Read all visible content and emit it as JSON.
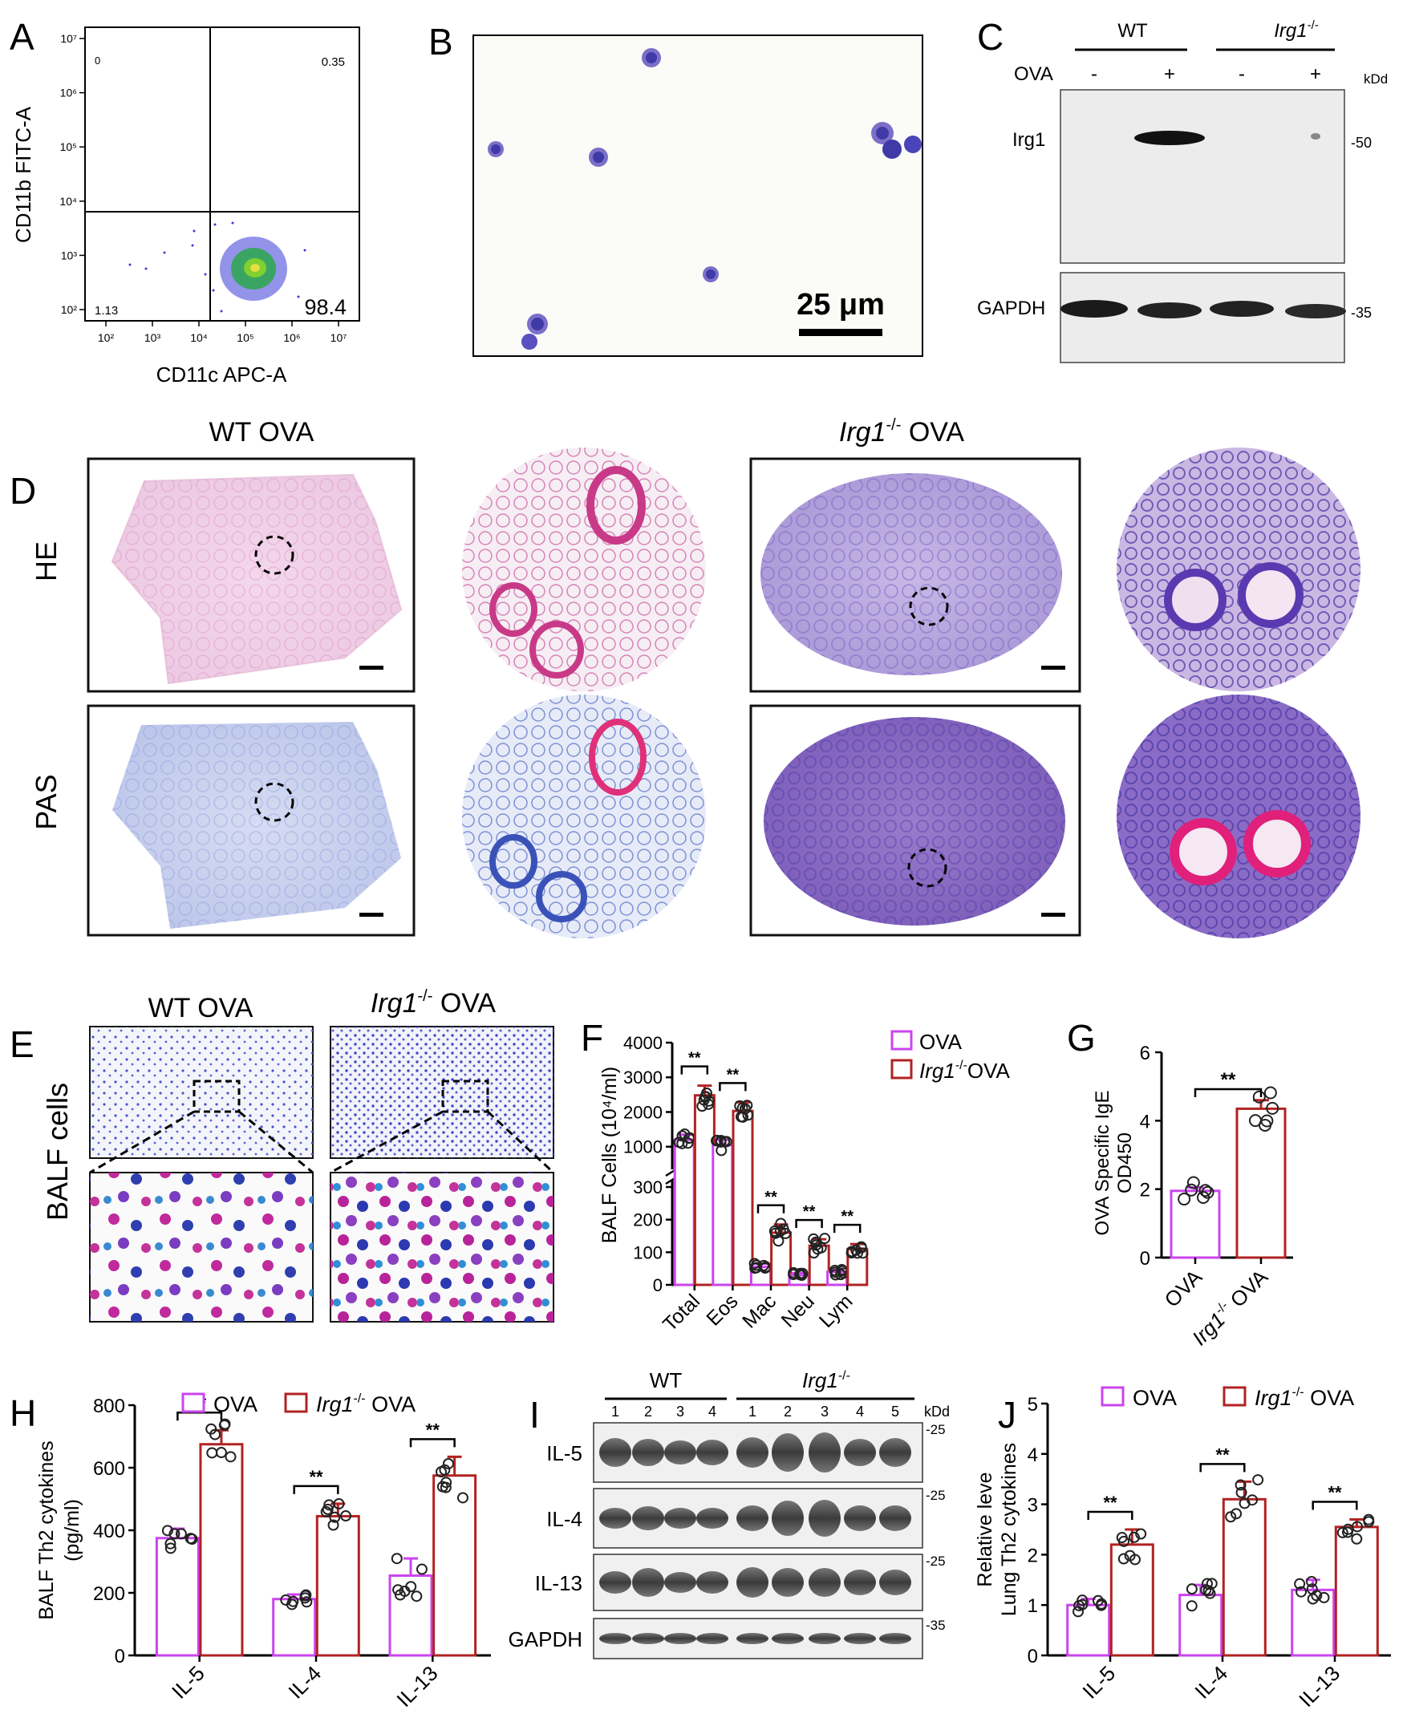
{
  "panels": {
    "A": {
      "label": "A",
      "xlabel": "CD11c APC-A",
      "ylabel": "CD11b FITC-A",
      "x_tick_labels": [
        "10²",
        "10³",
        "10⁴",
        "10⁵",
        "10⁶",
        "10⁷"
      ],
      "y_tick_labels": [
        "10²",
        "10³",
        "10⁴",
        "10⁵",
        "10⁶",
        "10⁷"
      ],
      "quadrant_values": {
        "upper_left": "0",
        "upper_right": "0.35",
        "lower_left": "1.13",
        "lower_right": "98.4"
      }
    },
    "B": {
      "label": "B",
      "scale_bar": "25 μm"
    },
    "C": {
      "label": "C",
      "groups": [
        "WT",
        "Irg1",
        "-/-"
      ],
      "row_label": "OVA",
      "lanes": [
        "-",
        "+",
        "-",
        "+"
      ],
      "unit": "kDd",
      "blots": [
        {
          "name": "Irg1",
          "marker": "-50"
        },
        {
          "name": "GAPDH",
          "marker": "-35"
        }
      ]
    },
    "D": {
      "label": "D",
      "col_titles": [
        {
          "plain": "WT OVA"
        },
        {
          "gene": "Irg1",
          "sup": "-/-",
          "rest": " OVA"
        }
      ],
      "row_labels": [
        "HE",
        "PAS"
      ]
    },
    "E": {
      "label": "E",
      "col_titles": [
        {
          "plain": "WT OVA"
        },
        {
          "gene": "Irg1",
          "sup": "-/-",
          "rest": " OVA"
        }
      ],
      "row_label": "BALF cells"
    },
    "I": {
      "label": "I",
      "groups": [
        "WT",
        "Irg1",
        "-/-"
      ],
      "lane_numbers": [
        "1",
        "2",
        "3",
        "4",
        "1",
        "2",
        "3",
        "4",
        "5"
      ],
      "unit": "kDd",
      "blots": [
        {
          "name": "IL-5",
          "marker": "-25"
        },
        {
          "name": "IL-4",
          "marker": "-25"
        },
        {
          "name": "IL-13",
          "marker": "-25"
        },
        {
          "name": "GAPDH",
          "marker": "-35"
        }
      ]
    }
  },
  "chart_data": [
    {
      "panel": "F",
      "label": "F",
      "type": "bar",
      "ylabel": "BALF Cells (10⁴/ml)",
      "categories": [
        "Total",
        "Eos",
        "Mac",
        "Neu",
        "Lym"
      ],
      "y_axis_break": {
        "lower": [
          0,
          300
        ],
        "upper": [
          300,
          4000
        ]
      },
      "yticks": [
        0,
        100,
        200,
        300,
        1000,
        2000,
        3000,
        4000
      ],
      "legend": [
        {
          "text": "OVA"
        },
        {
          "gene": "Irg1",
          "sup": "-/-",
          "rest": "OVA"
        }
      ],
      "series": [
        {
          "name": "OVA",
          "color": "#cc44ee",
          "values": [
            1200,
            1050,
            55,
            30,
            40
          ],
          "errors": [
            150,
            150,
            10,
            6,
            8
          ]
        },
        {
          "name": "Irg1-/- OVA",
          "color": "#b22222",
          "values": [
            2480,
            2030,
            160,
            120,
            110
          ],
          "errors": [
            280,
            250,
            25,
            20,
            15
          ]
        }
      ],
      "significance": [
        "**",
        "**",
        "**",
        "**",
        "**"
      ]
    },
    {
      "panel": "G",
      "label": "G",
      "type": "bar",
      "ylabel": [
        "OVA Specific IgE",
        "OD450"
      ],
      "categories": [
        {
          "text": "OVA"
        },
        {
          "gene": "Irg1",
          "sup": "-/-",
          "rest": " OVA"
        }
      ],
      "ylim": [
        0,
        6
      ],
      "yticks": [
        0,
        2,
        4,
        6
      ],
      "values": [
        1.95,
        4.35
      ],
      "errors": [
        0.1,
        0.25
      ],
      "colors": [
        "#cc44ee",
        "#b22222"
      ],
      "significance": "**"
    },
    {
      "panel": "H",
      "label": "H",
      "type": "bar",
      "ylabel": [
        "BALF Th2 cytokines",
        "(pg/ml)"
      ],
      "categories": [
        "IL-5",
        "IL-4",
        "IL-13"
      ],
      "ylim": [
        0,
        800
      ],
      "yticks": [
        0,
        200,
        400,
        600,
        800
      ],
      "legend": [
        {
          "text": "OVA"
        },
        {
          "gene": "Irg1",
          "sup": "-/-",
          "rest": " OVA"
        }
      ],
      "series": [
        {
          "name": "OVA",
          "color": "#cc44ee",
          "values": [
            375,
            180,
            255
          ],
          "errors": [
            30,
            15,
            55
          ]
        },
        {
          "name": "Irg1-/- OVA",
          "color": "#b22222",
          "values": [
            675,
            445,
            575
          ],
          "errors": [
            45,
            40,
            60
          ]
        }
      ],
      "significance": [
        "**",
        "**",
        "**"
      ]
    },
    {
      "panel": "J",
      "label": "J",
      "type": "bar",
      "ylabel": [
        "Relative leve",
        "Lung Th2 cytokines"
      ],
      "categories": [
        "IL-5",
        "IL-4",
        "IL-13"
      ],
      "ylim": [
        0,
        5
      ],
      "yticks": [
        0,
        1,
        2,
        3,
        4,
        5
      ],
      "legend": [
        {
          "text": "OVA"
        },
        {
          "gene": "Irg1",
          "sup": "-/-",
          "rest": " OVA"
        }
      ],
      "series": [
        {
          "name": "OVA",
          "color": "#cc44ee",
          "values": [
            1.0,
            1.2,
            1.3
          ],
          "errors": [
            0.12,
            0.2,
            0.2
          ]
        },
        {
          "name": "Irg1-/- OVA",
          "color": "#b22222",
          "values": [
            2.2,
            3.1,
            2.55
          ],
          "errors": [
            0.3,
            0.35,
            0.15
          ]
        }
      ],
      "significance": [
        "**",
        "**",
        "**"
      ]
    }
  ]
}
